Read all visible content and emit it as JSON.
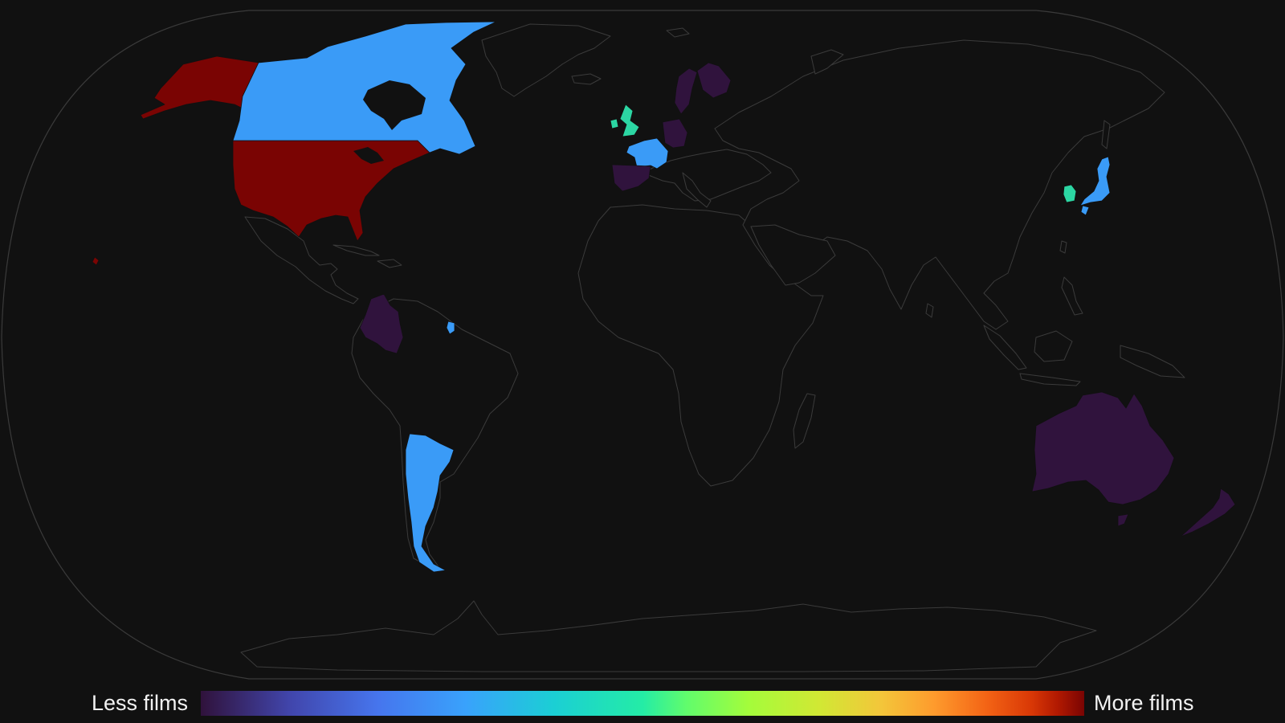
{
  "colors": {
    "background": "#111111",
    "outline": "#3b3b3b",
    "few_films": "#30133d",
    "low_mid_films": "#3a9bf7",
    "mid_films": "#2cd6a3",
    "most_films": "#7a0403"
  },
  "legend": {
    "min_label": "Less films",
    "max_label": "More films",
    "colormap": "turbo"
  },
  "highlighted_countries": [
    {
      "name": "United States",
      "level": "most_films"
    },
    {
      "name": "Canada",
      "level": "low_mid_films"
    },
    {
      "name": "United Kingdom",
      "level": "mid_films"
    },
    {
      "name": "France",
      "level": "low_mid_films"
    },
    {
      "name": "Spain",
      "level": "few_films"
    },
    {
      "name": "Germany",
      "level": "few_films"
    },
    {
      "name": "Sweden",
      "level": "few_films"
    },
    {
      "name": "Finland",
      "level": "few_films"
    },
    {
      "name": "Japan",
      "level": "low_mid_films"
    },
    {
      "name": "South Korea",
      "level": "mid_films"
    },
    {
      "name": "Colombia",
      "level": "few_films"
    },
    {
      "name": "French Guiana",
      "level": "low_mid_films"
    },
    {
      "name": "Argentina",
      "level": "low_mid_films"
    },
    {
      "name": "Australia",
      "level": "few_films"
    },
    {
      "name": "New Zealand",
      "level": "few_films"
    }
  ]
}
